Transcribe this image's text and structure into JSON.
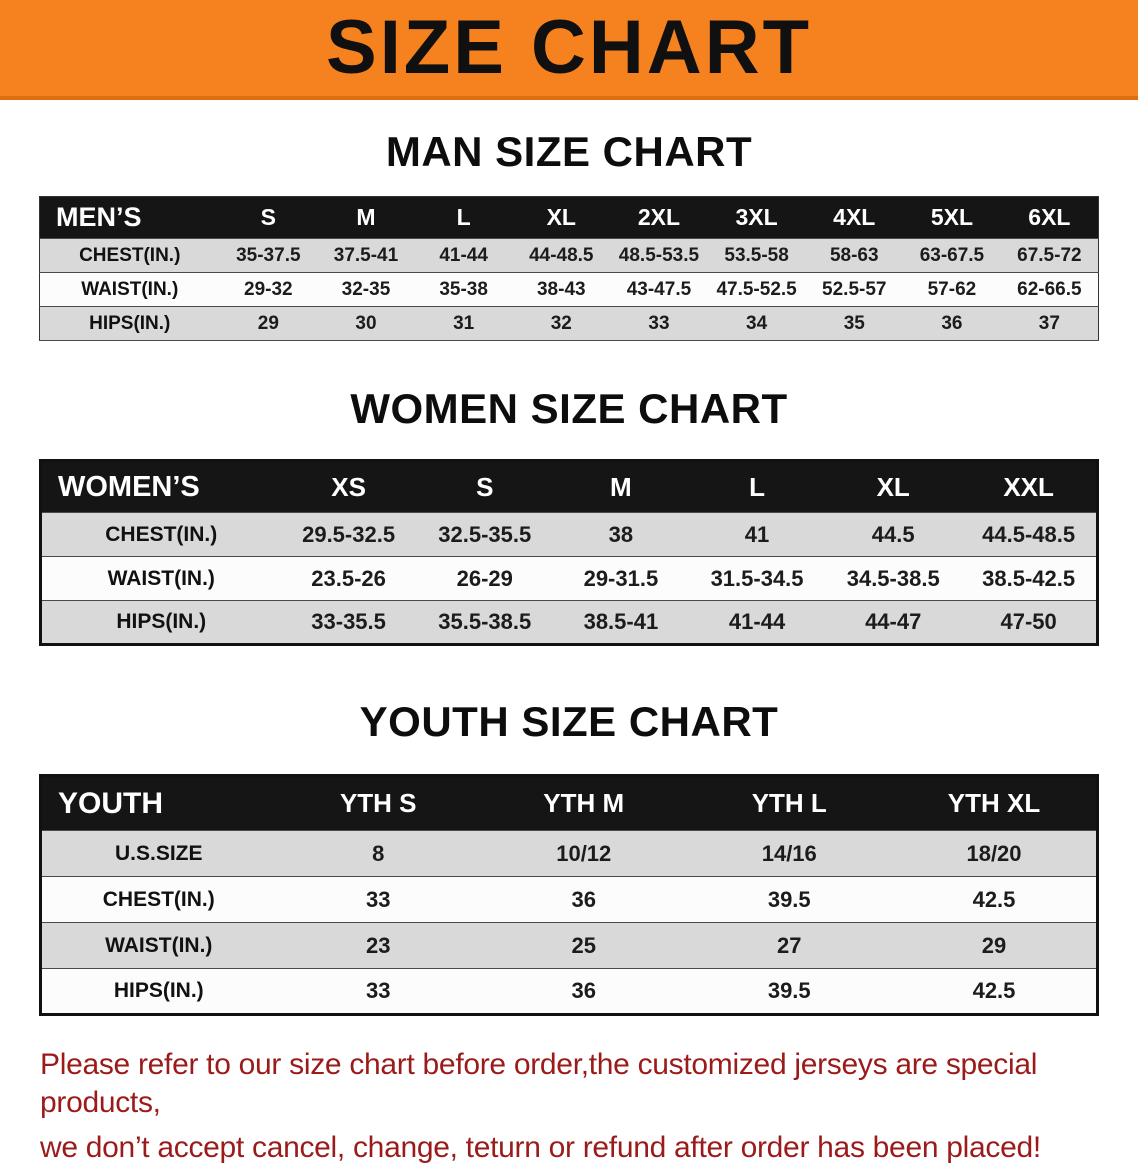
{
  "banner": {
    "title": "SIZE CHART"
  },
  "colors": {
    "banner_bg": "#f5821f",
    "footer_text": "#9b1b1b",
    "table_header_bg": "#151515",
    "row_gray": "#d9d9d9"
  },
  "men": {
    "heading": "MAN SIZE CHART",
    "header": {
      "label": "MEN’S",
      "cols": [
        "S",
        "M",
        "L",
        "XL",
        "2XL",
        "3XL",
        "4XL",
        "5XL",
        "6XL"
      ]
    },
    "chest": {
      "label": "CHEST(IN.)",
      "v": [
        "35-37.5",
        "37.5-41",
        "41-44",
        "44-48.5",
        "48.5-53.5",
        "53.5-58",
        "58-63",
        "63-67.5",
        "67.5-72"
      ]
    },
    "waist": {
      "label": "WAIST(IN.)",
      "v": [
        "29-32",
        "32-35",
        "35-38",
        "38-43",
        "43-47.5",
        "47.5-52.5",
        "52.5-57",
        "57-62",
        "62-66.5"
      ]
    },
    "hips": {
      "label": "HIPS(IN.)",
      "v": [
        "29",
        "30",
        "31",
        "32",
        "33",
        "34",
        "35",
        "36",
        "37"
      ]
    }
  },
  "women": {
    "heading": "WOMEN SIZE CHART",
    "header": {
      "label": "WOMEN’S",
      "cols": [
        "XS",
        "S",
        "M",
        "L",
        "XL",
        "XXL"
      ]
    },
    "chest": {
      "label": "CHEST(IN.)",
      "v": [
        "29.5-32.5",
        "32.5-35.5",
        "38",
        "41",
        "44.5",
        "44.5-48.5"
      ]
    },
    "waist": {
      "label": "WAIST(IN.)",
      "v": [
        "23.5-26",
        "26-29",
        "29-31.5",
        "31.5-34.5",
        "34.5-38.5",
        "38.5-42.5"
      ]
    },
    "hips": {
      "label": "HIPS(IN.)",
      "v": [
        "33-35.5",
        "35.5-38.5",
        "38.5-41",
        "41-44",
        "44-47",
        "47-50"
      ]
    }
  },
  "youth": {
    "heading": "YOUTH SIZE CHART",
    "header": {
      "label": "YOUTH",
      "cols": [
        "YTH S",
        "YTH M",
        "YTH L",
        "YTH XL"
      ]
    },
    "ussize": {
      "label": "U.S.SIZE",
      "v": [
        "8",
        "10/12",
        "14/16",
        "18/20"
      ]
    },
    "chest": {
      "label": "CHEST(IN.)",
      "v": [
        "33",
        "36",
        "39.5",
        "42.5"
      ]
    },
    "waist": {
      "label": "WAIST(IN.)",
      "v": [
        "23",
        "25",
        "27",
        "29"
      ]
    },
    "hips": {
      "label": "HIPS(IN.)",
      "v": [
        "33",
        "36",
        "39.5",
        "42.5"
      ]
    }
  },
  "footer": {
    "line1": "Please refer to our size chart before order,the customized jerseys are special products,",
    "line2": "we don’t accept cancel, change, teturn or refund after order has been placed!"
  }
}
